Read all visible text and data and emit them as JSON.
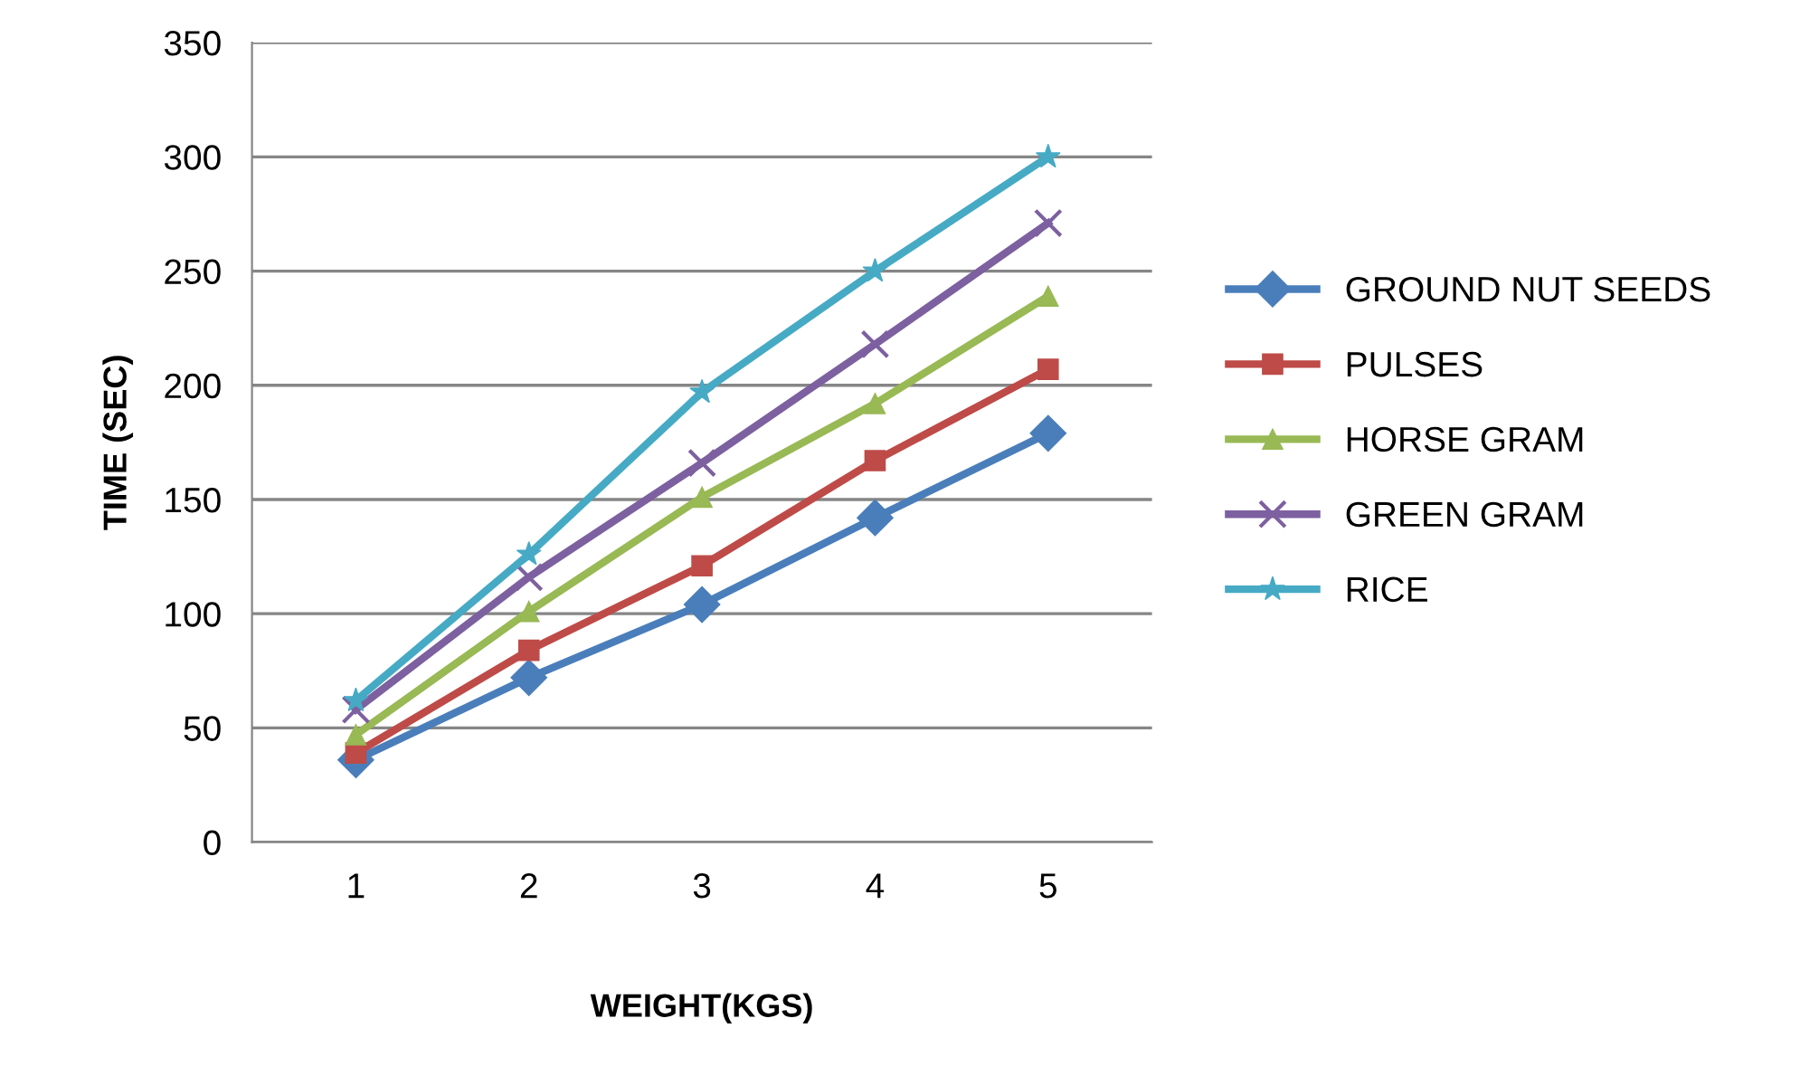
{
  "chart_data": {
    "type": "line",
    "xlabel": "WEIGHT(KGS)",
    "ylabel": "TIME (SEC)",
    "categories": [
      "1",
      "2",
      "3",
      "4",
      "5"
    ],
    "ylim": [
      0,
      350
    ],
    "yticks": [
      0,
      50,
      100,
      150,
      200,
      250,
      300,
      350
    ],
    "grid": "y",
    "legend": "right",
    "series": [
      {
        "name": "GROUND NUT SEEDS",
        "color": "#4a7ebb",
        "marker": "diamond",
        "values": [
          36,
          72,
          104,
          142,
          179
        ]
      },
      {
        "name": "PULSES",
        "color": "#be4b48",
        "marker": "square",
        "values": [
          39,
          84,
          121,
          167,
          207
        ]
      },
      {
        "name": "HORSE GRAM",
        "color": "#98b954",
        "marker": "triangle",
        "values": [
          47,
          101,
          151,
          192,
          239
        ]
      },
      {
        "name": "GREEN GRAM",
        "color": "#7d60a0",
        "marker": "cross",
        "values": [
          58,
          116,
          166,
          218,
          271
        ]
      },
      {
        "name": "RICE",
        "color": "#46aac5",
        "marker": "star",
        "values": [
          62,
          126,
          197,
          250,
          300
        ]
      }
    ]
  }
}
